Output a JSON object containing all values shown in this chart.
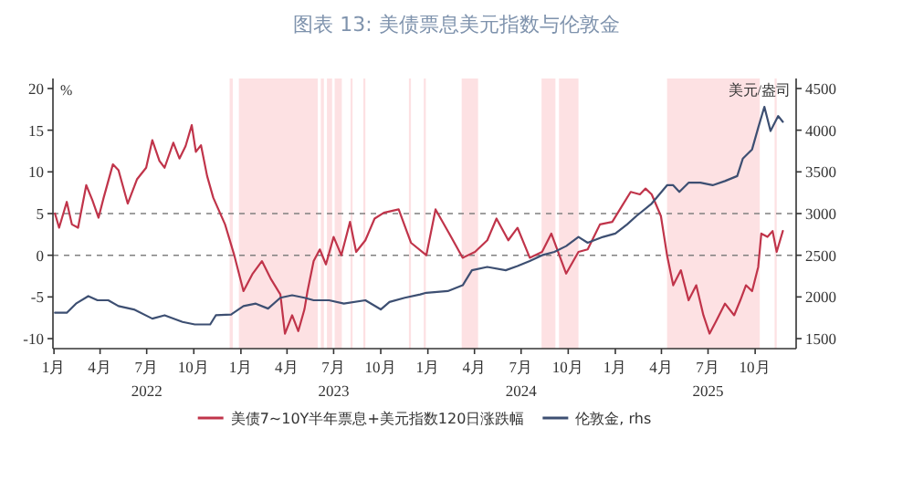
{
  "chart_data": {
    "type": "line",
    "title": "图表 13: 美债票息美元指数与伦敦金",
    "ylabel": "%",
    "y2label": "美元/盎司",
    "xlim": [
      "2021-12-30",
      "2025-12-20"
    ],
    "xticks": [
      {
        "value": "2022-01-01",
        "label": "1月"
      },
      {
        "value": "2022-04-01",
        "label": "4月"
      },
      {
        "value": "2022-07-01",
        "label": "7月\n2022"
      },
      {
        "value": "2022-10-01",
        "label": "10月"
      },
      {
        "value": "2023-01-01",
        "label": "1月"
      },
      {
        "value": "2023-04-01",
        "label": "4月"
      },
      {
        "value": "2023-07-01",
        "label": "7月\n2023"
      },
      {
        "value": "2023-10-01",
        "label": "10月"
      },
      {
        "value": "2024-01-01",
        "label": "1月"
      },
      {
        "value": "2024-04-01",
        "label": "4月"
      },
      {
        "value": "2024-07-01",
        "label": "7月\n2024"
      },
      {
        "value": "2024-10-01",
        "label": "10月"
      },
      {
        "value": "2025-01-01",
        "label": "1月"
      },
      {
        "value": "2025-04-01",
        "label": "4月"
      },
      {
        "value": "2025-07-01",
        "label": "7月\n2025"
      },
      {
        "value": "2025-10-01",
        "label": "10月"
      }
    ],
    "ylim": [
      -11.2,
      21.2
    ],
    "yticks": [
      -10,
      -5,
      0,
      5,
      10,
      15,
      20
    ],
    "y2lim": [
      1380,
      4620
    ],
    "y2ticks": [
      1500,
      2000,
      2500,
      3000,
      3500,
      4000,
      4500
    ],
    "legend": "bottom",
    "ref_lines": [
      {
        "axis": "y",
        "value": 5,
        "color": "#808080",
        "line_style": "dashed"
      },
      {
        "axis": "y",
        "value": 0,
        "color": "#808080",
        "line_style": "dashed"
      }
    ],
    "bands": [
      {
        "axis": "x",
        "from": "2022-12-10",
        "to": "2022-12-16",
        "color": "#fde1e3"
      },
      {
        "axis": "x",
        "from": "2022-12-28",
        "to": "2023-05-31",
        "color": "#fde1e3"
      },
      {
        "axis": "x",
        "from": "2023-06-06",
        "to": "2023-06-12",
        "color": "#fde1e3"
      },
      {
        "axis": "x",
        "from": "2023-06-18",
        "to": "2023-06-28",
        "color": "#fde1e3"
      },
      {
        "axis": "x",
        "from": "2023-07-03",
        "to": "2023-07-17",
        "color": "#fde1e3"
      },
      {
        "axis": "x",
        "from": "2023-08-03",
        "to": "2023-08-07",
        "color": "#fde1e3"
      },
      {
        "axis": "x",
        "from": "2023-08-28",
        "to": "2023-09-01",
        "color": "#fde1e3"
      },
      {
        "axis": "x",
        "from": "2023-11-25",
        "to": "2023-11-29",
        "color": "#fde1e3"
      },
      {
        "axis": "x",
        "from": "2023-12-24",
        "to": "2023-12-28",
        "color": "#fde1e3"
      },
      {
        "axis": "x",
        "from": "2024-03-07",
        "to": "2024-04-08",
        "color": "#fde1e3"
      },
      {
        "axis": "x",
        "from": "2024-08-10",
        "to": "2024-09-06",
        "color": "#fde1e3"
      },
      {
        "axis": "x",
        "from": "2024-09-13",
        "to": "2024-10-21",
        "color": "#fde1e3"
      },
      {
        "axis": "x",
        "from": "2025-04-12",
        "to": "2025-10-10",
        "color": "#fde1e3"
      },
      {
        "axis": "x",
        "from": "2025-11-08",
        "to": "2025-11-12",
        "color": "#fde1e3"
      }
    ],
    "series": [
      {
        "name": "美债7~10Y半年票息+美元指数120日涨跌幅",
        "color": "#c0344a",
        "x": [
          "2022-01-03",
          "2022-01-11",
          "2022-01-26",
          "2022-02-05",
          "2022-02-17",
          "2022-03-05",
          "2022-03-17",
          "2022-03-29",
          "2022-04-08",
          "2022-04-26",
          "2022-05-07",
          "2022-05-25",
          "2022-06-12",
          "2022-06-30",
          "2022-07-12",
          "2022-07-26",
          "2022-08-05",
          "2022-08-22",
          "2022-09-03",
          "2022-09-15",
          "2022-09-27",
          "2022-10-05",
          "2022-10-15",
          "2022-10-27",
          "2022-11-08",
          "2022-12-01",
          "2022-12-19",
          "2023-01-06",
          "2023-01-24",
          "2023-02-11",
          "2023-03-01",
          "2023-03-19",
          "2023-03-28",
          "2023-04-11",
          "2023-04-23",
          "2023-05-05",
          "2023-05-11",
          "2023-05-23",
          "2023-06-04",
          "2023-06-16",
          "2023-07-01",
          "2023-07-16",
          "2023-08-02",
          "2023-08-14",
          "2023-09-01",
          "2023-09-19",
          "2023-10-07",
          "2023-11-05",
          "2023-11-29",
          "2023-12-29",
          "2024-01-16",
          "2024-02-09",
          "2024-03-09",
          "2024-04-02",
          "2024-04-26",
          "2024-05-14",
          "2024-06-06",
          "2024-06-24",
          "2024-07-18",
          "2024-08-11",
          "2024-08-29",
          "2024-09-27",
          "2024-10-21",
          "2024-11-08",
          "2024-12-02",
          "2024-12-26",
          "2025-01-13",
          "2025-01-31",
          "2025-02-18",
          "2025-03-01",
          "2025-03-13",
          "2025-03-31",
          "2025-04-12",
          "2025-04-24",
          "2025-05-09",
          "2025-05-24",
          "2025-06-08",
          "2025-06-22",
          "2025-07-04",
          "2025-07-16",
          "2025-08-03",
          "2025-08-21",
          "2025-09-02",
          "2025-09-13",
          "2025-09-25",
          "2025-10-07",
          "2025-10-13",
          "2025-10-25",
          "2025-11-04",
          "2025-11-12",
          "2025-11-24"
        ],
        "values": [
          5.0,
          3.3,
          6.4,
          3.7,
          3.3,
          8.4,
          6.6,
          4.5,
          6.9,
          10.9,
          10.2,
          6.2,
          9.1,
          10.5,
          13.8,
          11.3,
          10.5,
          13.5,
          11.6,
          13.1,
          15.6,
          12.4,
          13.2,
          9.5,
          6.9,
          3.7,
          0,
          -4.3,
          -2.2,
          -0.7,
          -2.9,
          -4.7,
          -9.4,
          -7.2,
          -9.1,
          -6.5,
          -4.3,
          -0.7,
          0.7,
          -1.1,
          2.2,
          0,
          4.0,
          0.4,
          1.8,
          4.4,
          5.1,
          5.5,
          1.5,
          0,
          5.5,
          2.9,
          -0.3,
          0.4,
          1.8,
          4.4,
          1.8,
          3.3,
          -0.3,
          0.4,
          2.6,
          -2.2,
          0.4,
          0.7,
          3.7,
          4.0,
          5.8,
          7.6,
          7.3,
          8.0,
          7.3,
          4.7,
          0,
          -3.6,
          -1.8,
          -5.4,
          -3.6,
          -7.2,
          -9.4,
          -8.0,
          -5.8,
          -7.2,
          -5.4,
          -3.6,
          -4.3,
          -1.4,
          2.6,
          2.2,
          2.9,
          0.4,
          2.9
        ]
      },
      {
        "name": "伦敦金, rhs",
        "color": "#3d4f72",
        "axis": "y2",
        "x": [
          "2022-01-03",
          "2022-01-26",
          "2022-02-13",
          "2022-03-09",
          "2022-03-27",
          "2022-04-17",
          "2022-05-07",
          "2022-06-06",
          "2022-07-12",
          "2022-08-05",
          "2022-09-09",
          "2022-10-03",
          "2022-11-02",
          "2022-11-13",
          "2022-12-13",
          "2023-01-06",
          "2023-01-30",
          "2023-02-23",
          "2023-03-19",
          "2023-04-11",
          "2023-05-05",
          "2023-05-23",
          "2023-06-22",
          "2023-07-21",
          "2023-09-01",
          "2023-10-01",
          "2023-10-18",
          "2023-11-17",
          "2023-12-17",
          "2023-12-29",
          "2024-02-09",
          "2024-03-09",
          "2024-03-27",
          "2024-04-26",
          "2024-06-01",
          "2024-06-24",
          "2024-07-18",
          "2024-08-11",
          "2024-09-04",
          "2024-09-27",
          "2024-10-21",
          "2024-11-08",
          "2024-12-08",
          "2025-01-01",
          "2025-01-24",
          "2025-02-11",
          "2025-03-13",
          "2025-04-12",
          "2025-04-24",
          "2025-05-06",
          "2025-05-24",
          "2025-06-16",
          "2025-07-10",
          "2025-08-03",
          "2025-08-27",
          "2025-09-07",
          "2025-09-25",
          "2025-10-07",
          "2025-10-19",
          "2025-10-31",
          "2025-11-15",
          "2025-11-24"
        ],
        "values": [
          1810,
          1810,
          1920,
          2010,
          1960,
          1960,
          1890,
          1850,
          1740,
          1780,
          1700,
          1670,
          1670,
          1780,
          1790,
          1890,
          1920,
          1860,
          1990,
          2020,
          1990,
          1960,
          1960,
          1920,
          1960,
          1850,
          1940,
          1990,
          2030,
          2050,
          2070,
          2140,
          2320,
          2360,
          2320,
          2370,
          2430,
          2500,
          2540,
          2610,
          2720,
          2650,
          2720,
          2760,
          2870,
          2970,
          3120,
          3340,
          3340,
          3260,
          3370,
          3370,
          3340,
          3390,
          3450,
          3660,
          3770,
          4030,
          4280,
          3990,
          4170,
          4100
        ]
      }
    ]
  }
}
